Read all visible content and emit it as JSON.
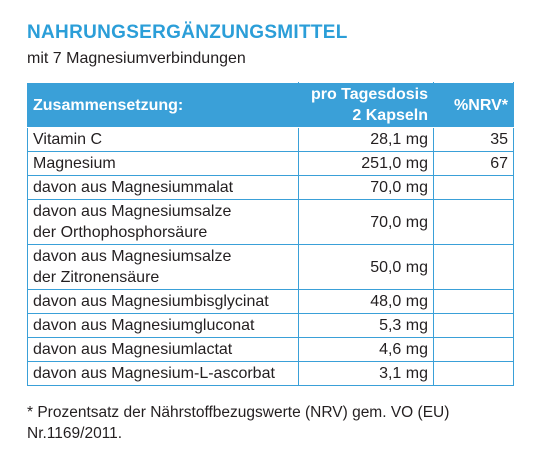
{
  "header": {
    "title": "NAHRUNGSERGÄNZUNGSMITTEL",
    "subtitle": "mit 7 Magnesiumverbindungen"
  },
  "table": {
    "columns": [
      [
        "Zusammensetzung:"
      ],
      [
        "pro Tagesdosis",
        "2 Kapseln"
      ],
      [
        "%NRV*"
      ]
    ],
    "rows": [
      {
        "name": [
          "Vitamin C"
        ],
        "amount": "28,1 mg",
        "nrv": 35
      },
      {
        "name": [
          "Magnesium"
        ],
        "amount": "251,0 mg",
        "nrv": 67
      },
      {
        "name": [
          "davon aus Magnesiummalat"
        ],
        "amount": "70,0 mg"
      },
      {
        "name": [
          "davon aus Magnesiumsalze",
          "der Orthophosphorsäure"
        ],
        "amount": "70,0 mg"
      },
      {
        "name": [
          "davon aus Magnesiumsalze",
          "der Zitronensäure"
        ],
        "amount": "50,0 mg"
      },
      {
        "name": [
          "davon aus Magnesiumbisglycinat"
        ],
        "amount": "48,0 mg"
      },
      {
        "name": [
          "davon aus Magnesiumgluconat"
        ],
        "amount": "5,3 mg"
      },
      {
        "name": [
          "davon aus Magnesiumlactat"
        ],
        "amount": "4,6 mg"
      },
      {
        "name": [
          "davon aus Magnesium-L-ascorbat"
        ],
        "amount": "3,1 mg"
      }
    ]
  },
  "footnote": "* Prozentsatz der Nährstoffbezugswerte (NRV) gem. VO (EU) Nr.1169/2011."
}
